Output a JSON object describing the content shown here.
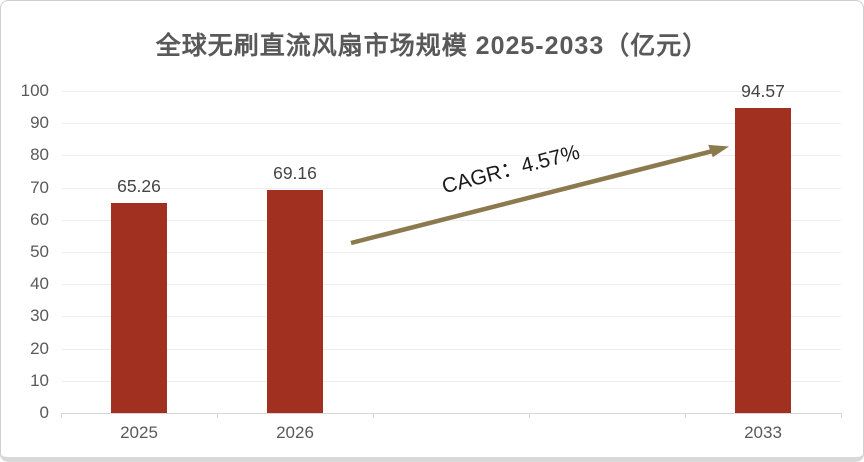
{
  "card": {
    "background": "#ffffff",
    "border_color": "#cfcfcf",
    "bottom_edge_color": "#d9d9d9"
  },
  "chart_data": {
    "type": "bar",
    "title": "全球无刷直流风扇市场规模 2025-2033（亿元）",
    "title_color": "#595959",
    "categories": [
      "2025",
      "2026",
      "2033"
    ],
    "values": [
      65.26,
      69.16,
      94.57
    ],
    "value_labels": [
      "65.26",
      "69.16",
      "94.57"
    ],
    "category_slots": 5,
    "category_slot_index": [
      0,
      1,
      4
    ],
    "ylim": [
      0,
      100
    ],
    "ytick_step": 10,
    "yticks": [
      0,
      10,
      20,
      30,
      40,
      50,
      60,
      70,
      80,
      90,
      100
    ],
    "grid": true,
    "legend_position": "none",
    "xlabel": "",
    "ylabel": "",
    "bar_color": "#A23020",
    "grid_color": "#efefef",
    "axis_color": "#d6d6d6",
    "tick_label_color": "#595959",
    "value_label_color": "#444444",
    "annotation": {
      "text": "CAGR：4.57%",
      "text_color": "#1a1a1a",
      "arrow_color": "#8A7A4E"
    }
  }
}
